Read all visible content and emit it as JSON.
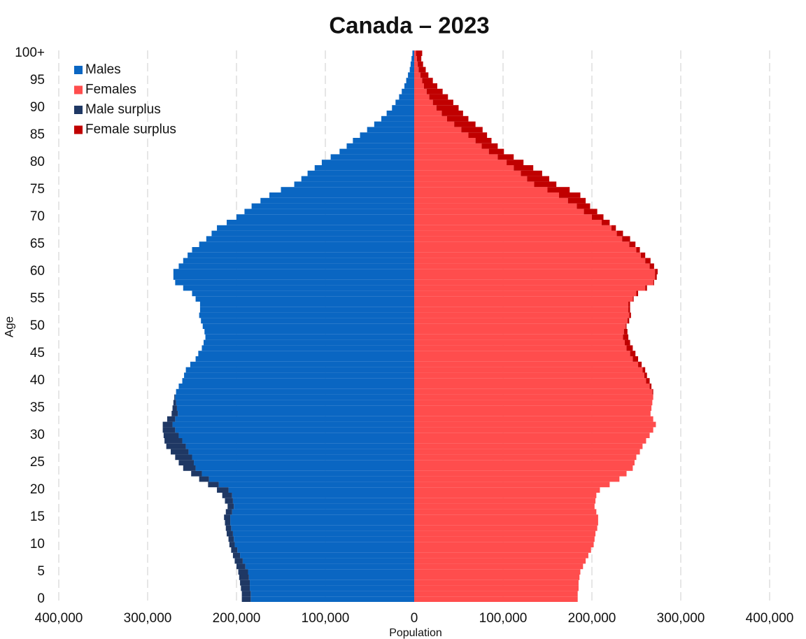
{
  "chart_data": {
    "type": "pyramid",
    "title": "Canada – 2023",
    "x_label": "Population",
    "y_label": "Age",
    "categories": [
      "0",
      null,
      null,
      null,
      null,
      "5",
      null,
      null,
      null,
      null,
      "10",
      null,
      null,
      null,
      null,
      "15",
      null,
      null,
      null,
      null,
      "20",
      null,
      null,
      null,
      null,
      "25",
      null,
      null,
      null,
      null,
      "30",
      null,
      null,
      null,
      null,
      "35",
      null,
      null,
      null,
      null,
      "40",
      null,
      null,
      null,
      null,
      "45",
      null,
      null,
      null,
      null,
      "50",
      null,
      null,
      null,
      null,
      "55",
      null,
      null,
      null,
      null,
      "60",
      null,
      null,
      null,
      null,
      "65",
      null,
      null,
      null,
      null,
      "70",
      null,
      null,
      null,
      null,
      "75",
      null,
      null,
      null,
      null,
      "80",
      null,
      null,
      null,
      null,
      "85",
      null,
      null,
      null,
      null,
      "90",
      null,
      null,
      null,
      null,
      "95",
      null,
      null,
      null,
      null,
      "100+"
    ],
    "series": [
      {
        "name": "Males",
        "color": "#0a66c2",
        "values": [
          184000,
          184000,
          185000,
          185000,
          186000,
          187000,
          190000,
          193000,
          196000,
          199000,
          202000,
          203000,
          204000,
          206000,
          207000,
          207000,
          205000,
          203000,
          204000,
          205000,
          209000,
          220000,
          231000,
          239000,
          246000,
          248000,
          250000,
          254000,
          257000,
          261000,
          265000,
          269000,
          272000,
          269000,
          266000,
          267000,
          268000,
          269000,
          268000,
          265000,
          261000,
          259000,
          257000,
          252000,
          246000,
          243000,
          239000,
          237000,
          235000,
          236000,
          238000,
          240000,
          242000,
          241000,
          241000,
          246000,
          250000,
          260000,
          269000,
          271000,
          271000,
          265000,
          260000,
          255000,
          250000,
          242000,
          234000,
          228000,
          222000,
          211000,
          200000,
          191000,
          183000,
          173000,
          163000,
          150000,
          135000,
          127000,
          120000,
          112000,
          104000,
          94000,
          84000,
          76000,
          69000,
          61000,
          53000,
          45000,
          37000,
          31000,
          25000,
          21000,
          17000,
          14000,
          11000,
          9000,
          7000,
          5000,
          4000,
          3000,
          2000
        ]
      },
      {
        "name": "Females",
        "color": "#ff4d4d",
        "values": [
          184000,
          184000,
          185000,
          185000,
          186000,
          187000,
          190000,
          193000,
          196000,
          199000,
          202000,
          203000,
          204000,
          206000,
          207000,
          207000,
          205000,
          203000,
          204000,
          205000,
          209000,
          220000,
          231000,
          239000,
          246000,
          248000,
          250000,
          254000,
          257000,
          261000,
          265000,
          269000,
          272000,
          269000,
          266000,
          267000,
          268000,
          269000,
          268000,
          265000,
          261000,
          259000,
          257000,
          252000,
          246000,
          243000,
          239000,
          237000,
          235000,
          236000,
          238000,
          240000,
          242000,
          241000,
          241000,
          246000,
          250000,
          260000,
          269000,
          271000,
          271000,
          265000,
          260000,
          255000,
          250000,
          242000,
          234000,
          228000,
          222000,
          211000,
          200000,
          191000,
          183000,
          173000,
          163000,
          150000,
          135000,
          127000,
          120000,
          112000,
          104000,
          94000,
          84000,
          76000,
          69000,
          61000,
          53000,
          45000,
          37000,
          31000,
          25000,
          21000,
          17000,
          14000,
          11000,
          9000,
          7000,
          5000,
          4000,
          3000,
          2000
        ]
      },
      {
        "name": "Male surplus",
        "color": "#1f3864",
        "values": [
          10000,
          10000,
          10000,
          11000,
          11000,
          11000,
          10000,
          9000,
          8000,
          7000,
          6000,
          6000,
          7000,
          6000,
          6000,
          7000,
          7000,
          7000,
          9000,
          11000,
          13000,
          12000,
          11000,
          12000,
          14000,
          17000,
          19000,
          20000,
          22000,
          20000,
          17000,
          14000,
          11000,
          9000,
          7000,
          5000,
          3000,
          1000,
          null,
          null,
          null,
          null,
          null,
          null,
          null,
          null,
          null,
          null,
          null,
          null,
          null,
          null,
          null,
          null,
          null,
          null,
          null,
          null,
          null,
          null,
          null,
          null,
          null,
          null,
          null,
          null,
          null,
          null,
          null,
          null,
          null,
          null,
          null,
          null,
          null,
          null,
          null,
          null,
          null,
          null,
          null,
          null,
          null,
          null,
          null,
          null,
          null,
          null,
          null,
          null,
          null,
          null,
          null,
          null,
          null,
          null,
          null,
          null,
          null,
          null,
          null
        ]
      },
      {
        "name": "Female surplus",
        "color": "#c00000",
        "values": [
          null,
          null,
          null,
          null,
          null,
          null,
          null,
          null,
          null,
          null,
          null,
          null,
          null,
          null,
          null,
          null,
          null,
          null,
          null,
          null,
          null,
          null,
          null,
          null,
          null,
          null,
          null,
          null,
          null,
          null,
          null,
          null,
          null,
          null,
          null,
          null,
          null,
          null,
          1000,
          2000,
          4000,
          3000,
          3000,
          4000,
          6000,
          6000,
          7000,
          6000,
          6000,
          4000,
          1000,
          2000,
          2000,
          2000,
          2000,
          1000,
          2000,
          2000,
          1000,
          2000,
          3000,
          5000,
          6000,
          5000,
          4000,
          7000,
          9000,
          7000,
          5000,
          9000,
          13000,
          15000,
          15000,
          20000,
          24000,
          25000,
          25000,
          25000,
          24000,
          22000,
          19000,
          18000,
          17000,
          18000,
          18000,
          21000,
          24000,
          24000,
          24000,
          24000,
          25000,
          23000,
          21000,
          18000,
          15000,
          12000,
          9000,
          8000,
          6000,
          5000,
          7000
        ]
      }
    ],
    "xlim": [
      -400000,
      400000
    ],
    "xticks": [
      {
        "value": -400000,
        "label": "400,000"
      },
      {
        "value": -300000,
        "label": "300,000"
      },
      {
        "value": -200000,
        "label": "200,000"
      },
      {
        "value": -100000,
        "label": "100,000"
      },
      0,
      {
        "value": 100000,
        "label": "100,000"
      },
      {
        "value": 200000,
        "label": "200,000"
      },
      {
        "value": 300000,
        "label": "300,000"
      },
      {
        "value": 400000,
        "label": "400,000"
      }
    ],
    "grid": true,
    "legend": "upper left"
  }
}
